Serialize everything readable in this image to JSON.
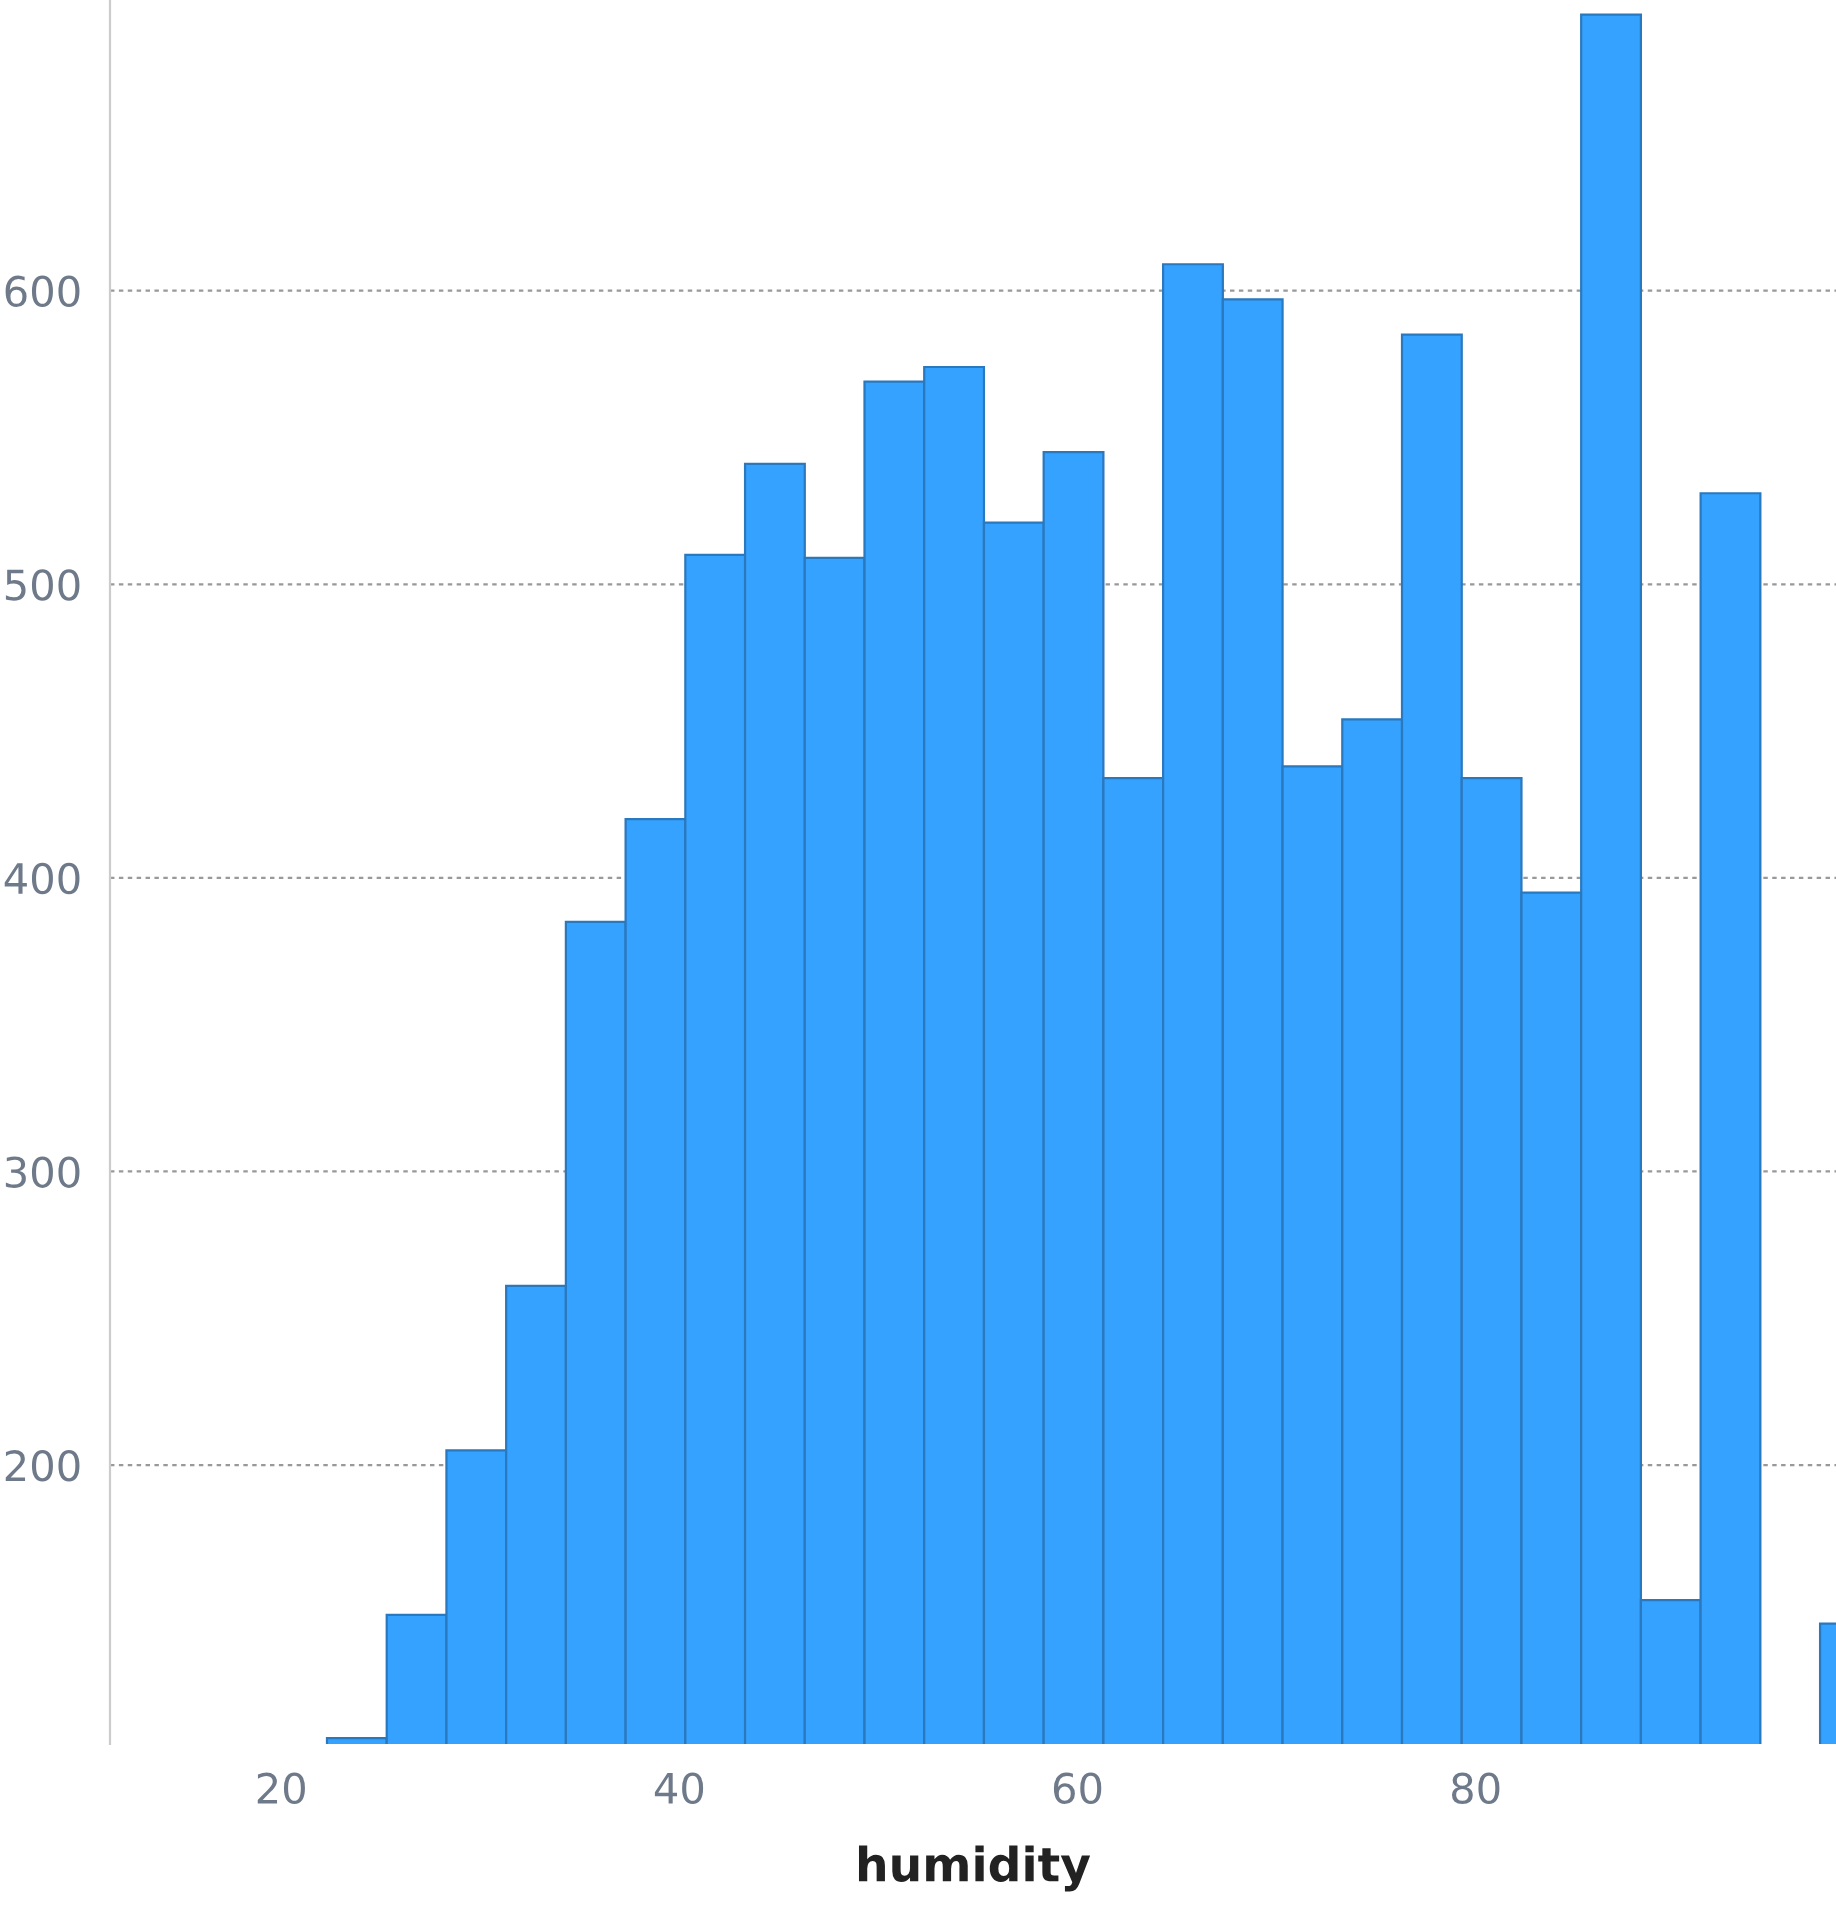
{
  "chart_data": {
    "type": "histogram",
    "xlabel": "humidity",
    "bins": [
      22.3,
      25.3,
      28.3,
      31.3,
      34.3,
      37.3,
      40.3,
      43.3,
      46.3,
      49.3,
      52.3,
      55.3,
      58.3,
      61.3,
      64.3,
      67.3,
      70.3,
      73.3,
      76.3,
      79.3,
      82.3,
      85.3,
      88.3,
      91.3,
      94.3,
      97.3,
      100.3
    ],
    "values": [
      107,
      149,
      205,
      261,
      385,
      420,
      510,
      541,
      509,
      569,
      574,
      521,
      545,
      434,
      609,
      597,
      438,
      454,
      585,
      434,
      395,
      694,
      154,
      531,
      null,
      146
    ],
    "color": "#36a2ff",
    "xlim": [
      11.4,
      98.1
    ],
    "ylim": [
      105,
      699
    ],
    "xticks": [
      20,
      40,
      60,
      80
    ],
    "yticks": [
      200,
      300,
      400,
      500,
      600
    ],
    "grid": "y"
  }
}
